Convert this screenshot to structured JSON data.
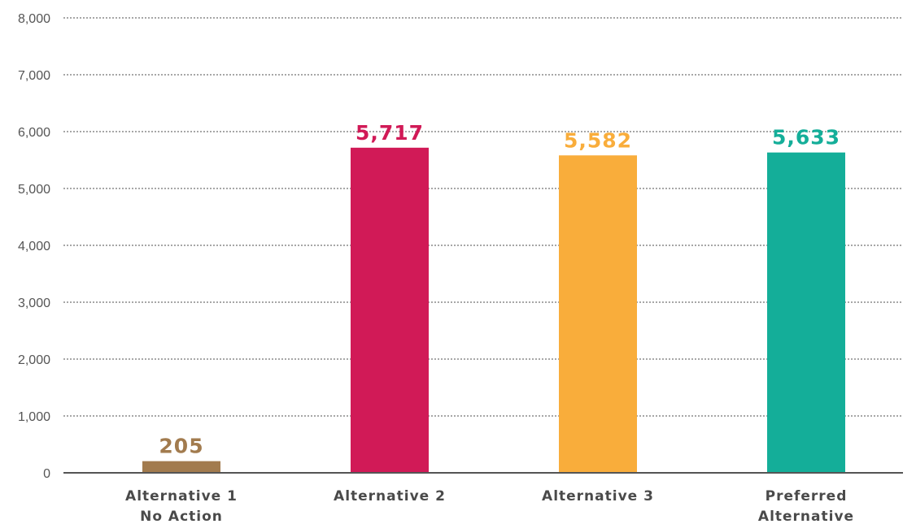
{
  "chart_data": {
    "type": "bar",
    "categories": [
      [
        "Alternative 1",
        "No Action"
      ],
      [
        "Alternative 2"
      ],
      [
        "Alternative 3"
      ],
      [
        "Preferred",
        "Alternative"
      ]
    ],
    "values": [
      205,
      5717,
      5582,
      5633
    ],
    "value_labels": [
      "205",
      "5,717",
      "5,582",
      "5,633"
    ],
    "colors": [
      "#a27b4e",
      "#d11a57",
      "#f9ad3b",
      "#14ae99"
    ],
    "ylim": [
      0,
      8000
    ],
    "yticks": [
      0,
      1000,
      2000,
      3000,
      4000,
      5000,
      6000,
      7000,
      8000
    ],
    "ytick_labels": [
      "0",
      "1,000",
      "2,000",
      "3,000",
      "4,000",
      "5,000",
      "6,000",
      "7,000",
      "8,000"
    ],
    "grid": true,
    "title": "",
    "xlabel": "",
    "ylabel": ""
  }
}
